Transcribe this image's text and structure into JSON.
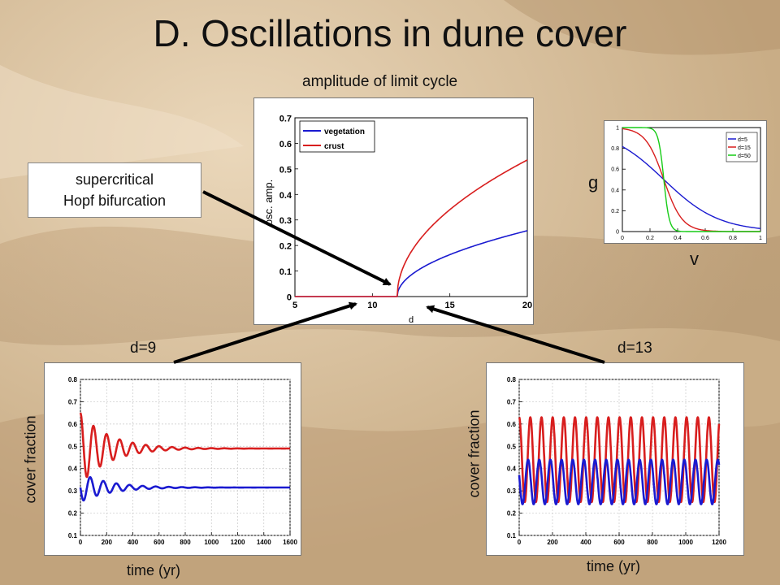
{
  "slide": {
    "title": "D. Oscillations in dune cover",
    "callout_line1": "supercritical",
    "callout_line2": "Hopf bifurcation",
    "amp_caption": "amplitude of limit cycle",
    "g_label": "g",
    "v_label": "v",
    "left_caption": "d=9",
    "right_caption": "d=13",
    "cover_fraction_label": "cover fraction",
    "time_label": "time (yr)"
  },
  "colors": {
    "blue": "#1a1ad0",
    "red": "#d81e1e",
    "green": "#16cc16",
    "arrow": "#000000"
  },
  "chart_data": [
    {
      "id": "amplitude",
      "type": "line",
      "xlabel": "d",
      "ylabel": "osc. amp.",
      "xlim": [
        5,
        20
      ],
      "ylim": [
        0,
        0.7
      ],
      "xticks": [
        5,
        10,
        15,
        20
      ],
      "yticks": [
        0,
        0.1,
        0.2,
        0.3,
        0.4,
        0.5,
        0.6,
        0.7
      ],
      "legend_position": "top-left",
      "series": [
        {
          "name": "vegetation",
          "color": "blue",
          "x": [
            5,
            11.6,
            12,
            12.5,
            13,
            14,
            15,
            16,
            17,
            18,
            19,
            20
          ],
          "y": [
            0,
            0,
            0.055,
            0.085,
            0.11,
            0.145,
            0.172,
            0.195,
            0.215,
            0.232,
            0.246,
            0.258
          ]
        },
        {
          "name": "crust",
          "color": "red",
          "x": [
            5,
            11.6,
            12,
            12.5,
            13,
            14,
            15,
            16,
            17,
            18,
            19,
            20
          ],
          "y": [
            0,
            0,
            0.12,
            0.185,
            0.235,
            0.31,
            0.365,
            0.41,
            0.447,
            0.48,
            0.508,
            0.535
          ]
        }
      ]
    },
    {
      "id": "g_curve",
      "type": "line",
      "xlabel": "",
      "ylabel": "",
      "xlim": [
        0,
        1
      ],
      "ylim": [
        0,
        1
      ],
      "xticks": [
        0,
        0.2,
        0.4,
        0.6,
        0.8,
        1
      ],
      "xtick_labels": [
        "0",
        "0.2",
        "0.4",
        "0.6",
        "0.8",
        "1"
      ],
      "yticks": [
        0,
        0.2,
        0.4,
        0.6,
        0.8,
        1
      ],
      "ytick_labels": [
        "0",
        "0.2",
        "0.4",
        "0.6",
        "0.8",
        "1"
      ],
      "legend_position": "top-right",
      "curve_center": 0.3,
      "series": [
        {
          "name": "d=5",
          "color": "blue",
          "steepness": 5
        },
        {
          "name": "d=15",
          "color": "red",
          "steepness": 15
        },
        {
          "name": "d=50",
          "color": "green",
          "steepness": 50
        }
      ]
    },
    {
      "id": "ts_d9",
      "type": "line",
      "xlabel": "time (yr)",
      "ylabel": "cover fraction",
      "xlim": [
        0,
        1600
      ],
      "ylim": [
        0.1,
        0.8
      ],
      "xticks": [
        0,
        200,
        400,
        600,
        800,
        1000,
        1200,
        1400,
        1600
      ],
      "yticks": [
        0.1,
        0.2,
        0.3,
        0.4,
        0.5,
        0.6,
        0.7,
        0.8
      ],
      "period": 100,
      "series": [
        {
          "color": "red",
          "mean": 0.49,
          "amplitude": 0.16,
          "decay": 220,
          "phase": 0,
          "t_end": 1600
        },
        {
          "color": "blue",
          "mean": 0.315,
          "amplitude": 0.065,
          "decay": 220,
          "phase": 0.5,
          "t_end": 1600
        }
      ]
    },
    {
      "id": "ts_d13",
      "type": "line",
      "xlabel": "time (yr)",
      "ylabel": "cover fraction",
      "xlim": [
        0,
        1200
      ],
      "ylim": [
        0.1,
        0.8
      ],
      "xticks": [
        0,
        200,
        400,
        600,
        800,
        1000,
        1200
      ],
      "yticks": [
        0.1,
        0.2,
        0.3,
        0.4,
        0.5,
        0.6,
        0.7,
        0.8
      ],
      "period": 67,
      "series": [
        {
          "color": "red",
          "max": 0.63,
          "min": 0.25,
          "phase": 0,
          "t_end": 1200
        },
        {
          "color": "blue",
          "max": 0.44,
          "min": 0.24,
          "phase": 0.4,
          "t_end": 1200
        }
      ]
    }
  ]
}
